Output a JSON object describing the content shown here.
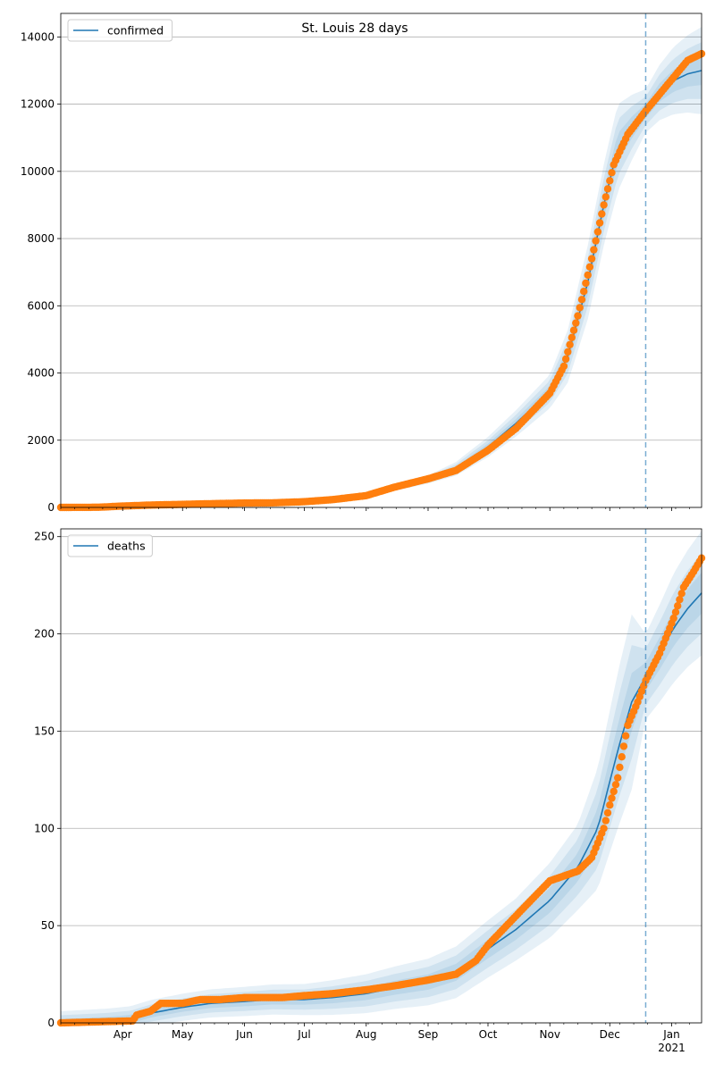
{
  "figure_title": "St. Louis 28 days",
  "colors": {
    "model": "#1f77b4",
    "observed": "#ff7f0e",
    "band": "#1f77b4",
    "grid": "#b0b0b0",
    "forecast_line": "#1f77b4"
  },
  "month_labels": [
    "Apr",
    "May",
    "Jun",
    "Jul",
    "Aug",
    "Sep",
    "Oct",
    "Nov",
    "Dec",
    "Jan"
  ],
  "year_label": "2021",
  "chart_data": [
    {
      "type": "line",
      "legend": "confirmed",
      "legend_placement": "top-left",
      "grid": "horizontal",
      "x_range": [
        "2020-03-01",
        "2021-01-16"
      ],
      "ylim": [
        0,
        14700
      ],
      "y_ticks": [
        "0",
        "2000",
        "4000",
        "6000",
        "8000",
        "10000",
        "12000",
        "14000"
      ],
      "forecast_start": "2020-12-19",
      "model": [
        [
          "2020-03-01",
          0
        ],
        [
          "2020-03-15",
          10
        ],
        [
          "2020-04-01",
          40
        ],
        [
          "2020-04-15",
          70
        ],
        [
          "2020-05-01",
          90
        ],
        [
          "2020-05-15",
          110
        ],
        [
          "2020-06-01",
          125
        ],
        [
          "2020-06-15",
          135
        ],
        [
          "2020-07-01",
          160
        ],
        [
          "2020-07-15",
          210
        ],
        [
          "2020-08-01",
          350
        ],
        [
          "2020-08-15",
          580
        ],
        [
          "2020-09-01",
          830
        ],
        [
          "2020-09-15",
          1150
        ],
        [
          "2020-10-01",
          1800
        ],
        [
          "2020-10-15",
          2500
        ],
        [
          "2020-11-01",
          3450
        ],
        [
          "2020-11-10",
          4500
        ],
        [
          "2020-11-20",
          6700
        ],
        [
          "2020-11-28",
          9000
        ],
        [
          "2020-12-05",
          10700
        ],
        [
          "2020-12-12",
          11300
        ],
        [
          "2020-12-19",
          11800
        ],
        [
          "2020-12-26",
          12350
        ],
        [
          "2021-01-02",
          12700
        ],
        [
          "2021-01-09",
          12900
        ],
        [
          "2021-01-16",
          13000
        ]
      ],
      "band_halfwidth": [
        [
          "2020-03-01",
          20
        ],
        [
          "2020-06-01",
          25
        ],
        [
          "2020-08-01",
          60
        ],
        [
          "2020-09-01",
          120
        ],
        [
          "2020-10-01",
          300
        ],
        [
          "2020-11-01",
          500
        ],
        [
          "2020-11-20",
          1100
        ],
        [
          "2020-12-05",
          1300
        ],
        [
          "2020-12-19",
          650
        ],
        [
          "2021-01-02",
          1000
        ],
        [
          "2021-01-16",
          1300
        ]
      ],
      "observed": [
        [
          "2020-03-01",
          0
        ],
        [
          "2020-03-20",
          5
        ],
        [
          "2020-04-01",
          40
        ],
        [
          "2020-04-15",
          70
        ],
        [
          "2020-05-01",
          90
        ],
        [
          "2020-05-15",
          110
        ],
        [
          "2020-06-01",
          130
        ],
        [
          "2020-06-15",
          135
        ],
        [
          "2020-07-01",
          170
        ],
        [
          "2020-07-15",
          230
        ],
        [
          "2020-08-01",
          350
        ],
        [
          "2020-08-15",
          600
        ],
        [
          "2020-09-01",
          850
        ],
        [
          "2020-09-15",
          1100
        ],
        [
          "2020-10-01",
          1700
        ],
        [
          "2020-10-15",
          2350
        ],
        [
          "2020-11-01",
          3400
        ],
        [
          "2020-11-08",
          4200
        ],
        [
          "2020-11-15",
          5700
        ],
        [
          "2020-11-22",
          7400
        ],
        [
          "2020-11-28",
          9000
        ],
        [
          "2020-12-03",
          10200
        ],
        [
          "2020-12-10",
          11100
        ],
        [
          "2020-12-19",
          11800
        ],
        [
          "2020-12-26",
          12300
        ],
        [
          "2021-01-02",
          12800
        ],
        [
          "2021-01-09",
          13300
        ],
        [
          "2021-01-16",
          13500
        ]
      ]
    },
    {
      "type": "line",
      "legend": "deaths",
      "legend_placement": "top-left",
      "grid": "horizontal",
      "x_range": [
        "2020-03-01",
        "2021-01-16"
      ],
      "ylim": [
        0,
        254
      ],
      "y_ticks": [
        "0",
        "50",
        "100",
        "150",
        "200",
        "250"
      ],
      "forecast_start": "2020-12-19",
      "model": [
        [
          "2020-03-01",
          0
        ],
        [
          "2020-03-25",
          1
        ],
        [
          "2020-04-05",
          2
        ],
        [
          "2020-04-15",
          5
        ],
        [
          "2020-05-01",
          8
        ],
        [
          "2020-05-15",
          10
        ],
        [
          "2020-06-01",
          11
        ],
        [
          "2020-06-15",
          12
        ],
        [
          "2020-07-01",
          12
        ],
        [
          "2020-07-15",
          13
        ],
        [
          "2020-08-01",
          15
        ],
        [
          "2020-08-15",
          18
        ],
        [
          "2020-09-01",
          21
        ],
        [
          "2020-09-15",
          26
        ],
        [
          "2020-10-01",
          38
        ],
        [
          "2020-10-15",
          48
        ],
        [
          "2020-11-01",
          63
        ],
        [
          "2020-11-15",
          80
        ],
        [
          "2020-11-25",
          100
        ],
        [
          "2020-12-05",
          140
        ],
        [
          "2020-12-12",
          165
        ],
        [
          "2020-12-19",
          178
        ],
        [
          "2020-12-26",
          190
        ],
        [
          "2021-01-02",
          203
        ],
        [
          "2021-01-09",
          213
        ],
        [
          "2021-01-16",
          221
        ]
      ],
      "band_halfwidth": [
        [
          "2020-03-01",
          6
        ],
        [
          "2020-05-01",
          7
        ],
        [
          "2020-07-01",
          8
        ],
        [
          "2020-09-01",
          12
        ],
        [
          "2020-10-15",
          16
        ],
        [
          "2020-11-15",
          22
        ],
        [
          "2020-12-05",
          40
        ],
        [
          "2020-12-12",
          45
        ],
        [
          "2020-12-19",
          22
        ],
        [
          "2021-01-02",
          28
        ],
        [
          "2021-01-16",
          32
        ]
      ],
      "observed": [
        [
          "2020-03-01",
          0
        ],
        [
          "2020-04-06",
          1
        ],
        [
          "2020-04-08",
          4
        ],
        [
          "2020-04-15",
          6
        ],
        [
          "2020-04-20",
          10
        ],
        [
          "2020-05-01",
          10
        ],
        [
          "2020-05-10",
          12
        ],
        [
          "2020-05-20",
          12
        ],
        [
          "2020-06-01",
          13
        ],
        [
          "2020-06-20",
          13
        ],
        [
          "2020-07-01",
          14
        ],
        [
          "2020-07-15",
          15
        ],
        [
          "2020-08-01",
          17
        ],
        [
          "2020-08-15",
          19
        ],
        [
          "2020-09-01",
          22
        ],
        [
          "2020-09-15",
          25
        ],
        [
          "2020-09-25",
          32
        ],
        [
          "2020-10-01",
          40
        ],
        [
          "2020-10-15",
          55
        ],
        [
          "2020-11-01",
          73
        ],
        [
          "2020-11-15",
          78
        ],
        [
          "2020-11-22",
          85
        ],
        [
          "2020-11-28",
          100
        ],
        [
          "2020-12-01",
          112
        ],
        [
          "2020-12-05",
          126
        ],
        [
          "2020-12-10",
          153
        ],
        [
          "2020-12-15",
          165
        ],
        [
          "2020-12-19",
          176
        ],
        [
          "2020-12-26",
          190
        ],
        [
          "2021-01-02",
          208
        ],
        [
          "2021-01-07",
          224
        ],
        [
          "2021-01-12",
          232
        ],
        [
          "2021-01-16",
          239
        ]
      ]
    }
  ]
}
